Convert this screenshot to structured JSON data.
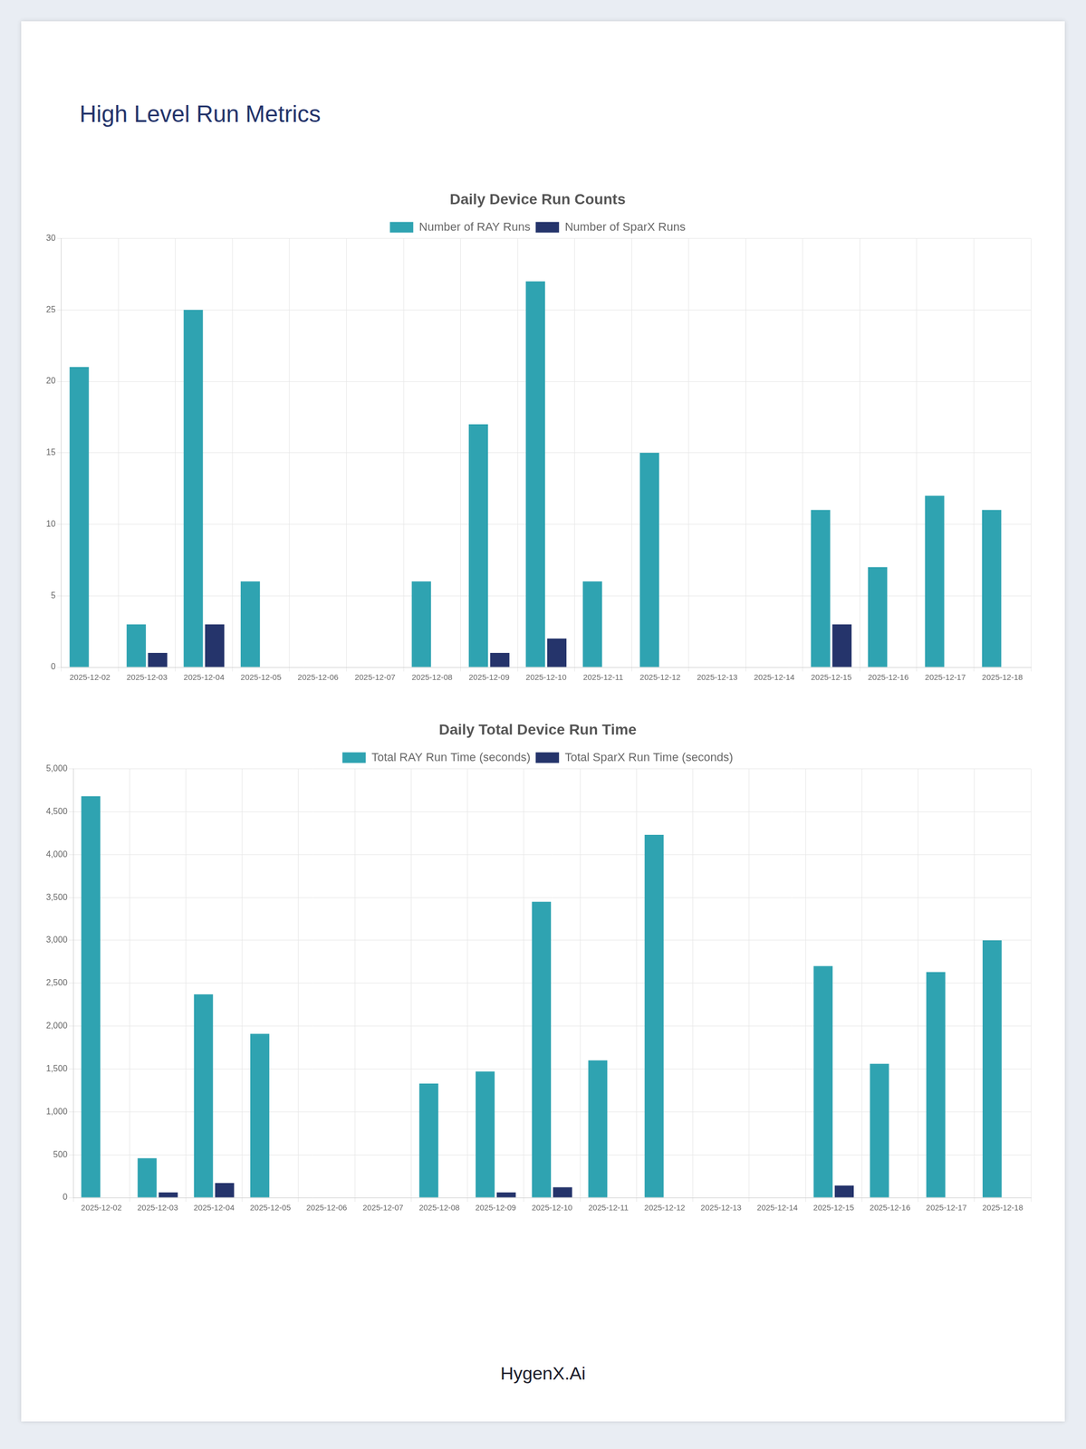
{
  "heading": "High Level Run Metrics",
  "footer": "HygenX.Ai",
  "chart_data": [
    {
      "type": "bar",
      "title": "Daily Device Run Counts",
      "categories": [
        "2025-12-02",
        "2025-12-03",
        "2025-12-04",
        "2025-12-05",
        "2025-12-06",
        "2025-12-07",
        "2025-12-08",
        "2025-12-09",
        "2025-12-10",
        "2025-12-11",
        "2025-12-12",
        "2025-12-13",
        "2025-12-14",
        "2025-12-15",
        "2025-12-16",
        "2025-12-17",
        "2025-12-18"
      ],
      "series": [
        {
          "name": "Number of RAY Runs",
          "color": "#2fa3b1",
          "values": [
            21,
            3,
            25,
            6,
            0,
            0,
            6,
            17,
            27,
            6,
            15,
            0,
            0,
            11,
            7,
            12,
            11
          ]
        },
        {
          "name": "Number of SparX Runs",
          "color": "#25346b",
          "values": [
            0,
            1,
            3,
            0,
            0,
            0,
            0,
            1,
            2,
            0,
            0,
            0,
            0,
            3,
            0,
            0,
            0
          ]
        }
      ],
      "ylim": [
        0,
        30
      ],
      "yticks": [
        0,
        5,
        10,
        15,
        20,
        25,
        30
      ],
      "grid": true,
      "legend": "top"
    },
    {
      "type": "bar",
      "title": "Daily Total Device Run Time",
      "categories": [
        "2025-12-02",
        "2025-12-03",
        "2025-12-04",
        "2025-12-05",
        "2025-12-06",
        "2025-12-07",
        "2025-12-08",
        "2025-12-09",
        "2025-12-10",
        "2025-12-11",
        "2025-12-12",
        "2025-12-13",
        "2025-12-14",
        "2025-12-15",
        "2025-12-16",
        "2025-12-17",
        "2025-12-18"
      ],
      "series": [
        {
          "name": "Total RAY Run Time (seconds)",
          "color": "#2fa3b1",
          "values": [
            4680,
            460,
            2370,
            1910,
            0,
            0,
            1330,
            1470,
            3450,
            1600,
            4230,
            0,
            0,
            2700,
            1560,
            2630,
            3000
          ]
        },
        {
          "name": "Total SparX Run Time (seconds)",
          "color": "#25346b",
          "values": [
            0,
            60,
            170,
            0,
            0,
            0,
            0,
            60,
            120,
            0,
            0,
            0,
            0,
            140,
            0,
            0,
            0
          ]
        }
      ],
      "ylim": [
        0,
        5000
      ],
      "yticks": [
        0,
        500,
        {
          "value": 1000,
          "label": "1,000"
        },
        {
          "value": 1500,
          "label": "1,500"
        },
        {
          "value": 2000,
          "label": "2,000"
        },
        {
          "value": 2500,
          "label": "2,500"
        },
        {
          "value": 3000,
          "label": "3,000"
        },
        {
          "value": 3500,
          "label": "3,500"
        },
        {
          "value": 4000,
          "label": "4,000"
        },
        {
          "value": 4500,
          "label": "4,500"
        },
        {
          "value": 5000,
          "label": "5,000"
        }
      ],
      "grid": true,
      "legend": "top"
    }
  ]
}
